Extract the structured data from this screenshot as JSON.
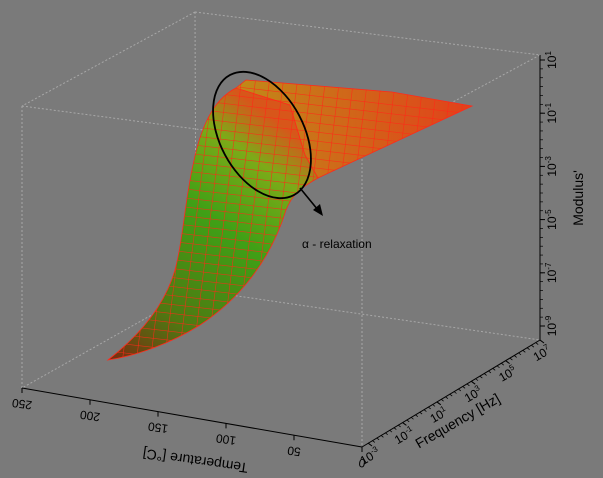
{
  "chart_data": {
    "type": "surface",
    "title": "",
    "axes": {
      "temperature": {
        "label": "Temperature [°C]",
        "ticks": [
          250,
          200,
          150,
          100,
          50,
          0
        ],
        "range": [
          0,
          250
        ]
      },
      "frequency": {
        "label": "Frequency [Hz]",
        "scale": "log",
        "tick_exponents": [
          -3,
          -1,
          1,
          3,
          5,
          7
        ],
        "range": [
          "1e-3",
          "1e7"
        ]
      },
      "modulus": {
        "label": "Modulus'",
        "scale": "log",
        "tick_exponents": [
          -9,
          -7,
          -5,
          -3,
          -1,
          1
        ],
        "range": [
          "1e-9",
          "1e1"
        ]
      }
    },
    "annotations": [
      {
        "text": "α - relaxation"
      }
    ],
    "surface_colors": {
      "low": "#1f6a12",
      "mid": "#3a9a1a",
      "high": "#d04010",
      "mesh": "#ff2a1a"
    }
  }
}
